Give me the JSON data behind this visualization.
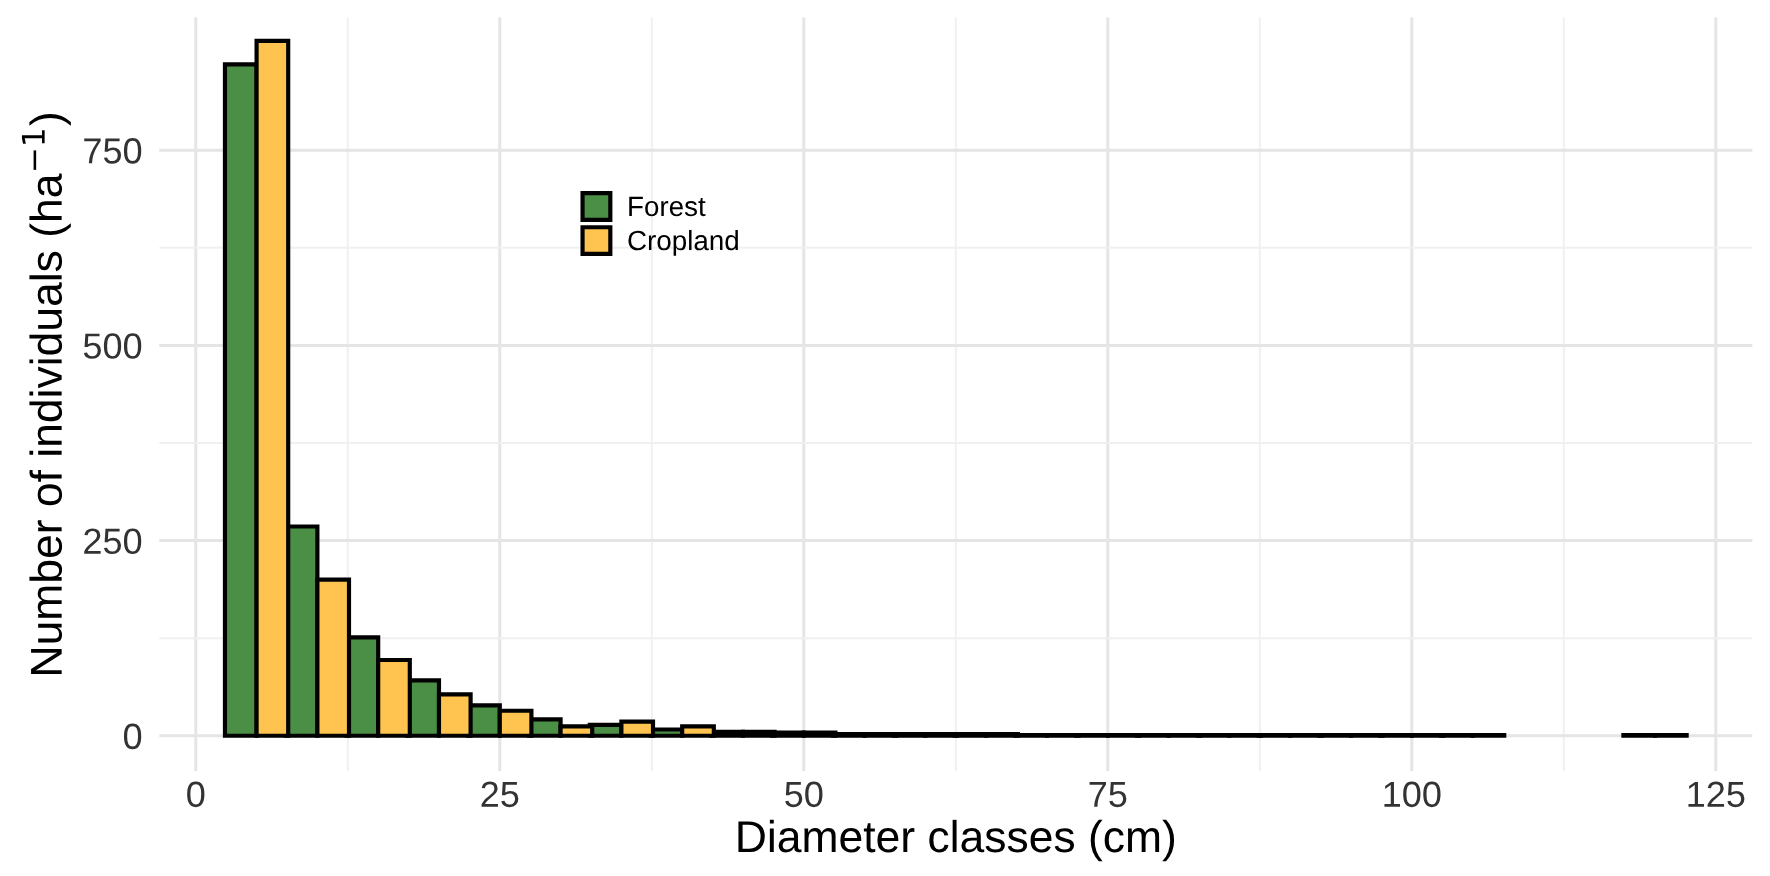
{
  "chart_data": {
    "type": "bar",
    "xlabel": "Diameter classes (cm)",
    "ylabel": "Number of individuals (ha$^{−1}$)",
    "x": [
      5,
      10,
      15,
      20,
      25,
      30,
      35,
      40,
      45,
      50,
      55,
      60,
      65,
      70,
      75,
      80,
      85,
      90,
      95,
      100,
      105,
      120
    ],
    "series": [
      {
        "name": "Forest",
        "color": "#4b8e45",
        "values": [
          860,
          268,
          126,
          71,
          39,
          21,
          14,
          8,
          5,
          4,
          2,
          2,
          2,
          1,
          1,
          1,
          1,
          1,
          1,
          1,
          1,
          1
        ]
      },
      {
        "name": "Cropland",
        "color": "#fec44f",
        "values": [
          890,
          200,
          97,
          53,
          32,
          12,
          18,
          12,
          5,
          4,
          2,
          2,
          2,
          1,
          1,
          1,
          1,
          1,
          1,
          1,
          1,
          1
        ]
      }
    ],
    "xlim": [
      -3,
      128
    ],
    "ylim": [
      -45,
      920
    ],
    "xticks": [
      0,
      25,
      50,
      75,
      100,
      125
    ],
    "yticks": [
      0,
      250,
      500,
      750
    ],
    "grid": true,
    "legend": "top left"
  }
}
